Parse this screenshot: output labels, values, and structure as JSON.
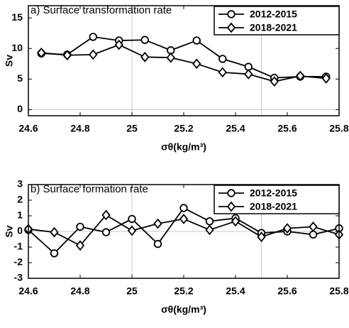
{
  "chart_data": [
    {
      "type": "line",
      "title": "a) Surface transformation rate",
      "ylabel": "Sv",
      "xlabel": "σθ(kg/m³)",
      "x": [
        24.65,
        24.75,
        24.85,
        24.95,
        25.05,
        25.15,
        25.25,
        25.35,
        25.45,
        25.55,
        25.65,
        25.75
      ],
      "series": [
        {
          "name": "2012-2015",
          "color": "#000000",
          "marker": "circle",
          "values": [
            9.2,
            9,
            11.9,
            11.3,
            11.4,
            9.7,
            11.3,
            8.3,
            7,
            5.2,
            5.4,
            5.4
          ]
        },
        {
          "name": "2018-2021",
          "color": "#000000",
          "marker": "diamond",
          "values": [
            9.3,
            8.9,
            9,
            10.6,
            8.6,
            8.5,
            7.5,
            6.1,
            5.8,
            4.6,
            5.5,
            5.1
          ]
        }
      ],
      "xlim": [
        24.6,
        25.8
      ],
      "xticks": [
        24.6,
        24.8,
        25,
        25.2,
        25.4,
        25.6,
        25.8
      ],
      "ylim": [
        -1,
        17
      ],
      "yticks": [
        0,
        5,
        10,
        15
      ],
      "ref_x": [
        25,
        25.5
      ],
      "ref_y": [
        0
      ],
      "legend": "upper-right"
    },
    {
      "type": "line",
      "title": "b) Surface formation rate",
      "ylabel": "Sv",
      "xlabel": "σθ(kg/m³)",
      "x": [
        24.6,
        24.7,
        24.8,
        24.9,
        25.0,
        25.1,
        25.2,
        25.3,
        25.4,
        25.5,
        25.6,
        25.7,
        25.8
      ],
      "series": [
        {
          "name": "2012-2015",
          "color": "#000000",
          "marker": "circle",
          "values": [
            0.1,
            -1.4,
            0.3,
            -0.05,
            0.8,
            -0.8,
            1.5,
            0.65,
            0.85,
            -0.1,
            0,
            -0.2,
            0.2
          ]
        },
        {
          "name": "2018-2021",
          "color": "#000000",
          "marker": "diamond",
          "values": [
            0.15,
            -0.05,
            -0.9,
            1.05,
            0.05,
            0.5,
            0.8,
            0.1,
            0.65,
            -0.35,
            0.2,
            0.3,
            -0.2
          ]
        }
      ],
      "xlim": [
        24.6,
        25.8
      ],
      "xticks": [
        24.6,
        24.8,
        25,
        25.2,
        25.4,
        25.6,
        25.8
      ],
      "ylim": [
        -3,
        3
      ],
      "yticks": [
        -3,
        -2,
        -1,
        0,
        1,
        2,
        3
      ],
      "ref_x": [
        25,
        25.5
      ],
      "ref_y": [
        0
      ],
      "legend": "upper-right"
    }
  ]
}
